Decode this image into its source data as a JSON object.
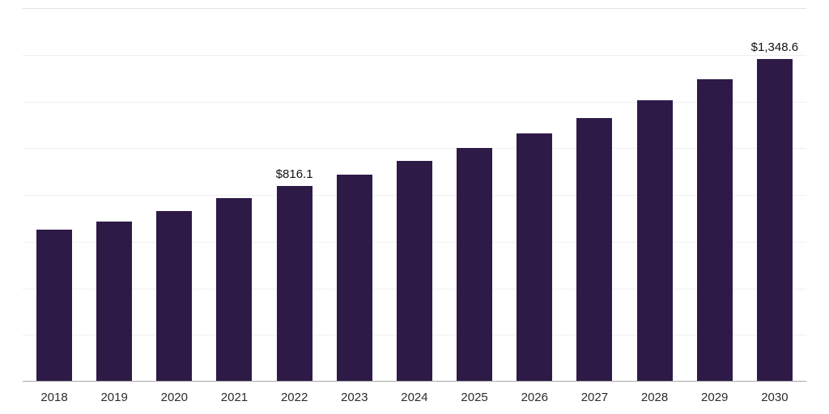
{
  "chart_data": {
    "type": "bar",
    "title": "",
    "xlabel": "",
    "ylabel": "",
    "categories": [
      "2018",
      "2019",
      "2020",
      "2021",
      "2022",
      "2023",
      "2024",
      "2025",
      "2026",
      "2027",
      "2028",
      "2029",
      "2030"
    ],
    "values": [
      634,
      670,
      712,
      766,
      816.1,
      866,
      922,
      976,
      1036,
      1102,
      1176,
      1262,
      1348.6
    ],
    "annotations": [
      {
        "category": "2022",
        "text": "$816.1"
      },
      {
        "category": "2030",
        "text": "$1,348.6"
      }
    ],
    "ylim": [
      0,
      1560
    ],
    "grid": "horizontal",
    "grid_divisions": 8,
    "legend": "none",
    "bar_color": "#2e1a47"
  },
  "colors": {
    "bar": "#2e1a47",
    "gridline": "#f0f0f0",
    "top_gridline": "#e2e2e2",
    "axis_line": "#a8a8a8",
    "value_label_text": "#111111",
    "tick_label_text": "#2b2b2b",
    "background": "#ffffff"
  }
}
